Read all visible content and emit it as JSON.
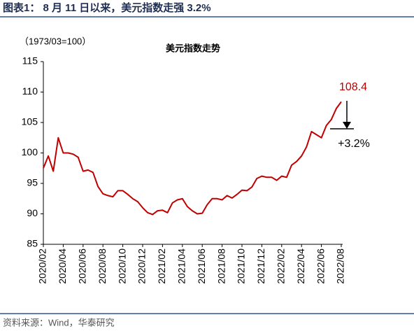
{
  "header": {
    "title": "图表1： 8 月 11 日以来，美元指数走强 3.2%"
  },
  "chart_data": {
    "type": "line",
    "title": "美元指数走势",
    "subtitle": "（1973/03=100）",
    "categories": [
      "2020/02",
      null,
      null,
      null,
      "2020/04",
      null,
      null,
      null,
      "2020/06",
      null,
      null,
      null,
      "2020/08",
      null,
      null,
      null,
      "2020/10",
      null,
      null,
      null,
      "2020/12",
      null,
      null,
      null,
      "2021/02",
      null,
      null,
      null,
      "2021/04",
      null,
      null,
      null,
      "2021/06",
      null,
      null,
      null,
      "2021/08",
      null,
      null,
      null,
      "2021/10",
      null,
      null,
      null,
      "2021/12",
      null,
      null,
      null,
      "2022/02",
      null,
      null,
      null,
      "2022/04",
      null,
      null,
      null,
      "2022/06",
      null,
      null,
      null,
      "2022/08"
    ],
    "series": [
      {
        "name": "美元指数",
        "color": "#c00000",
        "values": [
          97.5,
          99.5,
          97,
          102.5,
          100,
          100,
          99.8,
          99.3,
          97,
          97.2,
          96.8,
          94.5,
          93.3,
          93,
          92.8,
          93.8,
          93.8,
          93.2,
          92.5,
          92,
          91,
          90.2,
          89.9,
          90.5,
          90.6,
          90.2,
          91.8,
          92.3,
          92.5,
          91.2,
          90.5,
          90,
          90.1,
          91.5,
          92.5,
          92.5,
          92.3,
          93,
          92.6,
          93.2,
          93.9,
          93.8,
          94.4,
          95.8,
          96.2,
          96,
          96,
          95.5,
          96.2,
          96,
          98,
          98.6,
          99.5,
          101,
          103.5,
          103,
          102.5,
          104.5,
          105.5,
          107.3,
          108.4
        ]
      }
    ],
    "ylim": [
      85,
      115
    ],
    "yticks": [
      85,
      90,
      95,
      100,
      105,
      110,
      115
    ],
    "annotations": [
      "108.4",
      "+3.2%"
    ]
  },
  "footer": {
    "source": "资料来源：Wind，华泰研究"
  }
}
